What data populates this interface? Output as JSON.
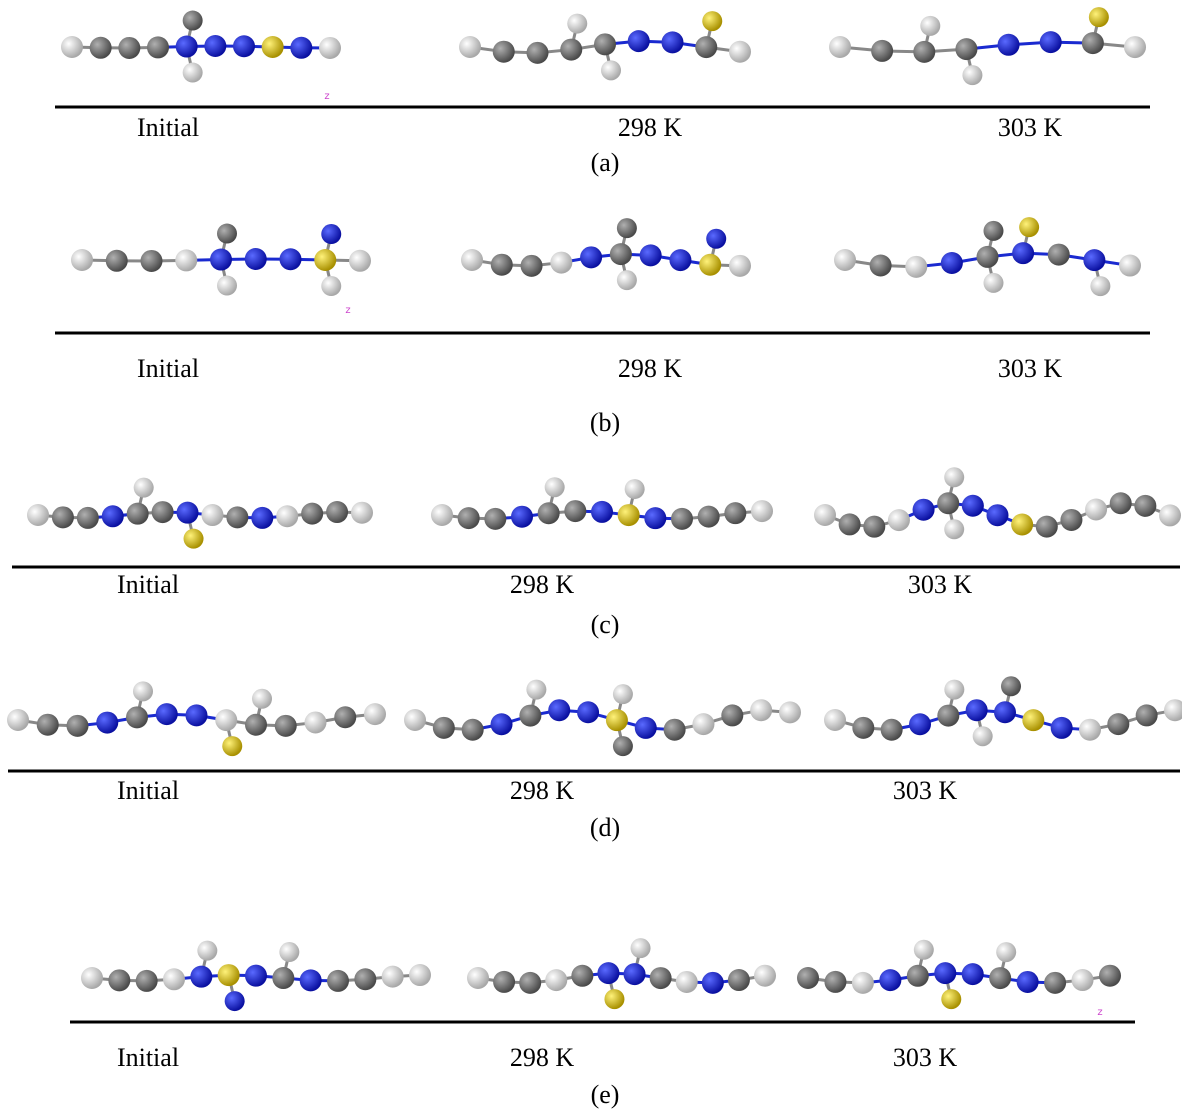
{
  "panels": [
    {
      "caption": "(a)",
      "labels": [
        "Initial",
        "298 K",
        "303 K"
      ],
      "axis_marker": "z"
    },
    {
      "caption": "(b)",
      "labels": [
        "Initial",
        "298 K",
        "303 K"
      ],
      "axis_marker": "z"
    },
    {
      "caption": "(c)",
      "labels": [
        "Initial",
        "298 K",
        "303 K"
      ]
    },
    {
      "caption": "(d)",
      "labels": [
        "Initial",
        "298 K",
        "303 K"
      ]
    },
    {
      "caption": "(e)",
      "labels": [
        "Initial",
        "298 K",
        "303 K"
      ],
      "axis_marker": "z"
    }
  ]
}
